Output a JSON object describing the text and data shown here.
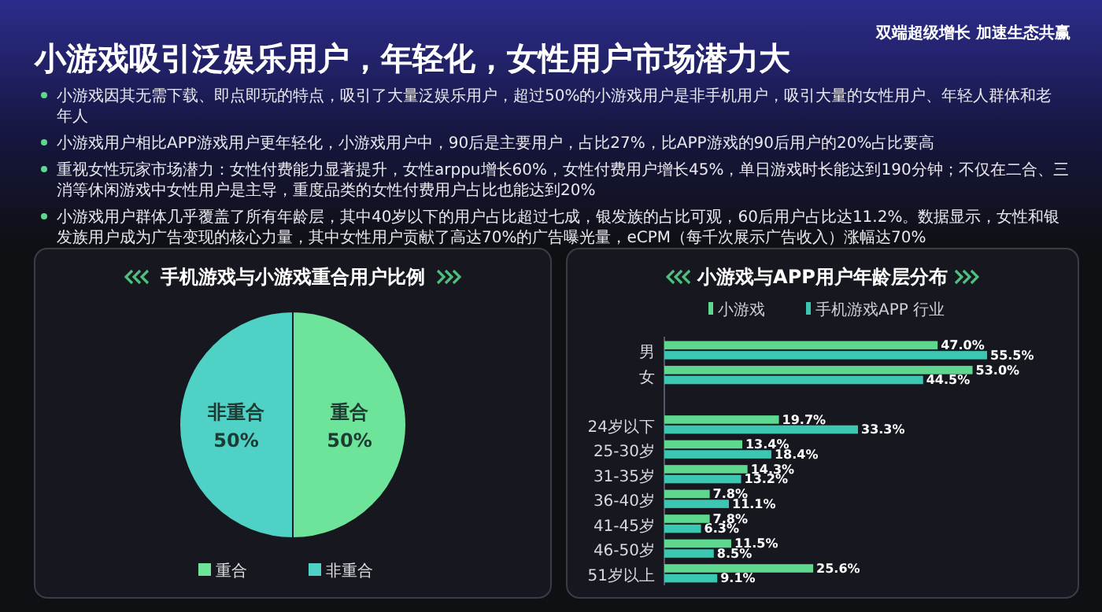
{
  "chart_data": [
    {
      "type": "other",
      "title": "小游戏吸引泛娱乐用户，年轻化，女性用户市场潜力大",
      "annotations": [
        "双端超级增长 加速生态共赢",
        "小游戏因其无需下载、即点即玩的特点，吸引了大量泛娱乐用户，超过50%的小游戏用户是非手机用户，吸引大量的女性用户、年轻人群体和老年人",
        "小游戏用户相比APP游戏用户更年轻化，小游戏用户中，90后是主要用户，占比27%，比APP游戏的90后用户的20%占比要高",
        "重视女性玩家市场潜力：女性付费能力显著提升，女性arppu增长60%，女性付费用户增长45%，单日游戏时长能达到190分钟；不仅在二合、三消等休闲游戏中女性用户是主导，重度品类的女性付费用户占比也能达到20%",
        "小游戏用户群体几乎覆盖了所有年龄层，其中40岁以下的用户占比超过七成，银发族的占比可观，60后用户占比达11.2%。数据显示，女性和银发族用户成为广告变现的核心力量，其中女性用户贡献了高达70%的广告曝光量，eCPM（每千次展示广告收入）涨幅达70%"
      ]
    },
    {
      "type": "pie",
      "title": "手机游戏与小游戏重合用户比例",
      "categories": [
        "重合",
        "非重合"
      ],
      "values": [
        50,
        50
      ],
      "colors": [
        "#6ee39a",
        "#4fd1c5"
      ],
      "value_labels": [
        "50%",
        "50%"
      ],
      "legend": "bottom"
    },
    {
      "type": "bar",
      "orientation": "horizontal",
      "title": "小游戏与APP用户年龄层分布",
      "legend": "top",
      "categories": [
        "男",
        "女",
        null,
        "24岁以下",
        "25-30岁",
        "31-35岁",
        "36-40岁",
        "41-45岁",
        "46-50岁",
        "51岁以上"
      ],
      "series": [
        {
          "name": "小游戏",
          "color": "#5fd88f",
          "values": [
            47.0,
            53.0,
            null,
            19.7,
            13.4,
            14.3,
            7.8,
            7.8,
            11.5,
            25.6
          ],
          "value_labels": [
            "47.0%",
            "53.0%",
            null,
            "19.7%",
            "13.4%",
            "14.3%",
            "7.8%",
            "7.8%",
            "11.5%",
            "25.6%"
          ]
        },
        {
          "name": "手机游戏APP 行业",
          "color": "#3cc7b3",
          "values": [
            55.5,
            44.5,
            null,
            33.3,
            18.4,
            13.2,
            11.1,
            6.3,
            8.5,
            9.1
          ],
          "value_labels": [
            "55.5%",
            "44.5%",
            null,
            "33.3%",
            "18.4%",
            "13.2%",
            "11.1%",
            "6.3%",
            "8.5%",
            "9.1%"
          ]
        }
      ]
    }
  ]
}
